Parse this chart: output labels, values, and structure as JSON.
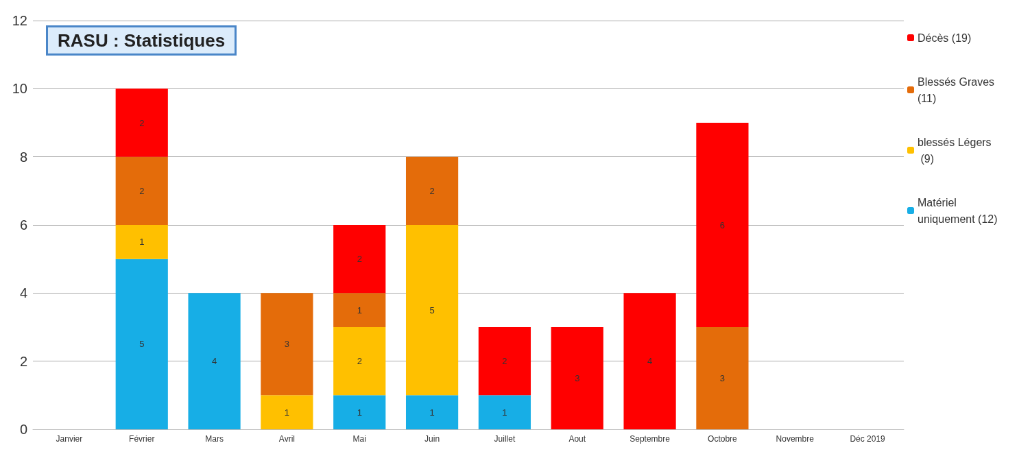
{
  "chart_data": {
    "type": "bar",
    "title": "RASU : Statistiques",
    "stacked": true,
    "data_labels": true,
    "grid": "y",
    "legend": "right",
    "ylim": [
      0,
      12
    ],
    "yticks": [
      0,
      2,
      4,
      6,
      8,
      10,
      12
    ],
    "categories": [
      "Janvier",
      "Février",
      "Mars",
      "Avril",
      "Mai",
      "Juin",
      "Juillet",
      "Aout",
      "Septembre",
      "Octobre",
      "Novembre",
      "Déc 2019"
    ],
    "series": [
      {
        "name": "Matériel uniquement (12)",
        "color": "#17aee6",
        "values": [
          null,
          5,
          4,
          null,
          1,
          1,
          1,
          null,
          null,
          null,
          null,
          null
        ]
      },
      {
        "name": "blessés Légers (9)",
        "color": "#ffc000",
        "values": [
          null,
          1,
          null,
          1,
          2,
          5,
          null,
          null,
          null,
          null,
          null,
          null
        ]
      },
      {
        "name": "Blessés Graves (11)",
        "color": "#e46c0a",
        "values": [
          null,
          2,
          null,
          3,
          1,
          2,
          null,
          null,
          null,
          3,
          null,
          null
        ]
      },
      {
        "name": "Décès (19)",
        "color": "#ff0000",
        "values": [
          null,
          2,
          null,
          null,
          2,
          null,
          2,
          3,
          4,
          6,
          null,
          null
        ]
      }
    ]
  }
}
